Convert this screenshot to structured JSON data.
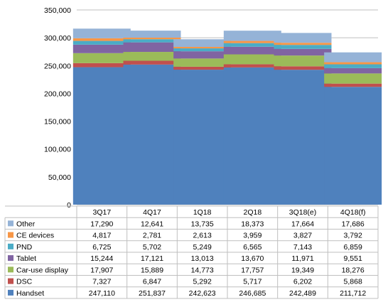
{
  "chart_data": {
    "type": "bar",
    "stacked": true,
    "categories": [
      "3Q17",
      "4Q17",
      "1Q18",
      "2Q18",
      "3Q18(e)",
      "4Q18(f)"
    ],
    "ylim": [
      0,
      350000
    ],
    "yticks": [
      "0",
      "50,000",
      "100,000",
      "150,000",
      "200,000",
      "250,000",
      "300,000",
      "350,000"
    ],
    "ytick_values": [
      0,
      50000,
      100000,
      150000,
      200000,
      250000,
      300000,
      350000
    ],
    "grid": true,
    "legend_placement": "data-table-left",
    "series": [
      {
        "name": "Handset",
        "color": "#4f81bd",
        "values": [
          247110,
          251837,
          242623,
          246685,
          242489,
          211712
        ],
        "labels": [
          "247,110",
          "251,837",
          "242,623",
          "246,685",
          "242,489",
          "211,712"
        ]
      },
      {
        "name": "DSC",
        "color": "#c0504d",
        "values": [
          7327,
          6847,
          5292,
          5717,
          6202,
          5868
        ],
        "labels": [
          "7,327",
          "6,847",
          "5,292",
          "5,717",
          "6,202",
          "5,868"
        ]
      },
      {
        "name": "Car-use display",
        "color": "#9bbb59",
        "values": [
          17907,
          15889,
          14773,
          17757,
          19349,
          18276
        ],
        "labels": [
          "17,907",
          "15,889",
          "14,773",
          "17,757",
          "19,349",
          "18,276"
        ]
      },
      {
        "name": "Tablet",
        "color": "#8064a2",
        "values": [
          15244,
          17121,
          13013,
          13670,
          11971,
          9551
        ],
        "labels": [
          "15,244",
          "17,121",
          "13,013",
          "13,670",
          "11,971",
          "9,551"
        ]
      },
      {
        "name": "PND",
        "color": "#4bacc6",
        "values": [
          6725,
          5702,
          5249,
          6565,
          7143,
          6859
        ],
        "labels": [
          "6,725",
          "5,702",
          "5,249",
          "6,565",
          "7,143",
          "6,859"
        ]
      },
      {
        "name": "CE devices",
        "color": "#f79646",
        "values": [
          4817,
          2781,
          2613,
          3959,
          3827,
          3792
        ],
        "labels": [
          "4,817",
          "2,781",
          "2,613",
          "3,959",
          "3,827",
          "3,792"
        ]
      },
      {
        "name": "Other",
        "color": "#95b3d7",
        "values": [
          17290,
          12641,
          13735,
          18373,
          17664,
          17686
        ],
        "labels": [
          "17,290",
          "12,641",
          "13,735",
          "18,373",
          "17,664",
          "17,686"
        ]
      }
    ]
  }
}
